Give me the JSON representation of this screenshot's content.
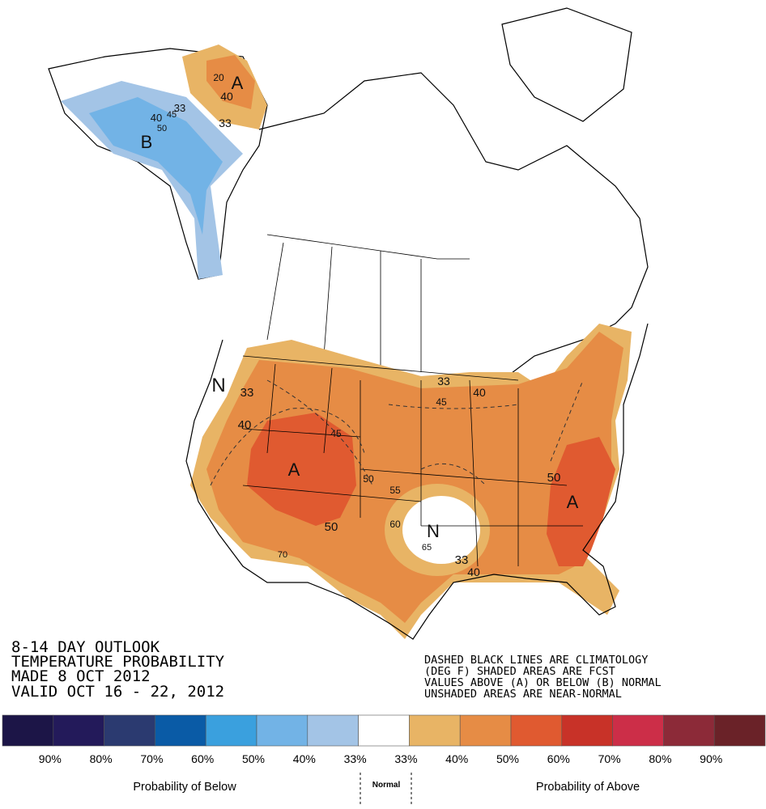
{
  "title_lines": [
    "8-14 DAY OUTLOOK",
    "TEMPERATURE PROBABILITY",
    "MADE  8 OCT 2012",
    "VALID  OCT 16 - 22, 2012"
  ],
  "note_lines": [
    "DASHED BLACK LINES ARE CLIMATOLOGY",
    "(DEG F) SHADED AREAS ARE FCST",
    "VALUES ABOVE (A) OR BELOW (B) NORMAL",
    "UNSHADED AREAS ARE NEAR-NORMAL"
  ],
  "map_labels": [
    "A",
    "20",
    "40",
    "33",
    "33",
    "45",
    "40",
    "50",
    "B",
    "N",
    "33",
    "40",
    "45",
    "A",
    "50",
    "55",
    "50",
    "70",
    "60",
    "N",
    "65",
    "33",
    "45",
    "40",
    "50",
    "A",
    "33",
    "40"
  ],
  "legend": {
    "colors": [
      "#1c1547",
      "#231a5a",
      "#2b3a70",
      "#0a5ba6",
      "#3aa0de",
      "#72b3e6",
      "#a3c4e6",
      "#ffffff",
      "#e8b465",
      "#e68c45",
      "#e05a30",
      "#c83228",
      "#cc2e48",
      "#8c2a38",
      "#6a2228"
    ],
    "labels": [
      "90%",
      "80%",
      "70%",
      "60%",
      "50%",
      "40%",
      "33%",
      "33%",
      "40%",
      "50%",
      "60%",
      "70%",
      "80%",
      "90%"
    ],
    "below_label": "Probability of Below",
    "normal_label": "Normal",
    "above_label": "Probability of Above"
  }
}
